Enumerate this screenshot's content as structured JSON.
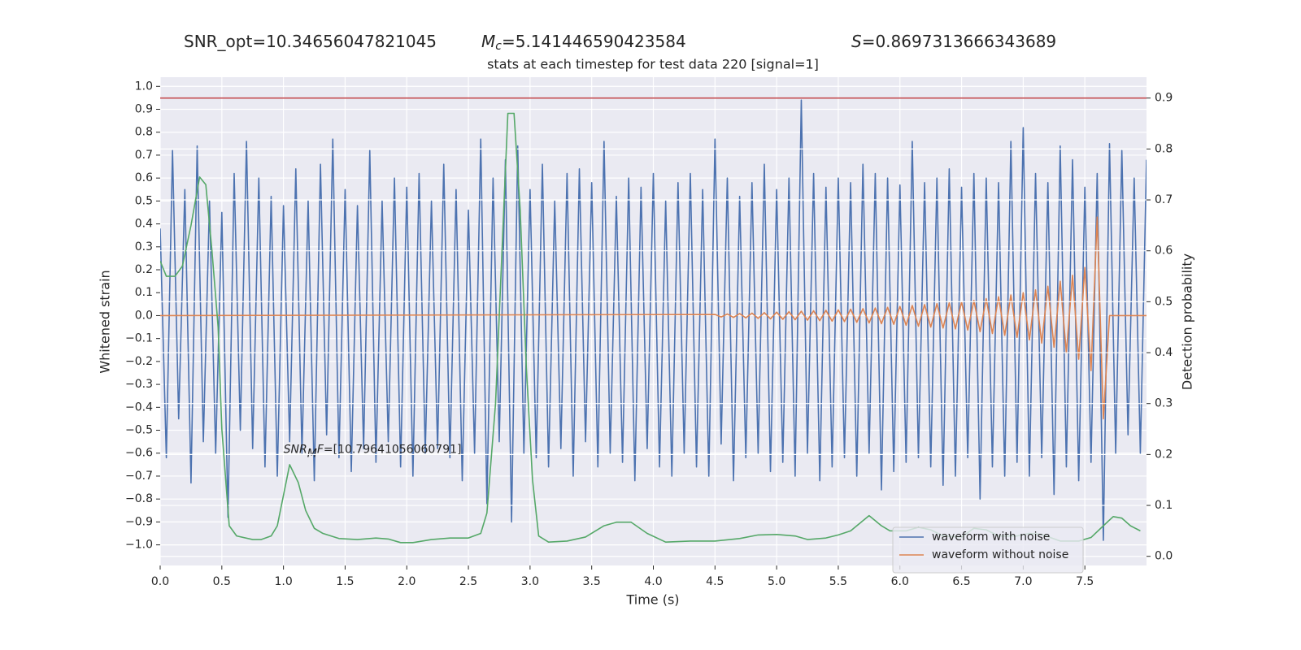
{
  "chart_data": {
    "type": "line",
    "title": "stats at each timestep for test data 220 [signal=1]",
    "header": [
      {
        "parts": [
          "SNR_opt=10.34656047821045"
        ]
      },
      {
        "parts": [
          "M",
          "c",
          "=5.141446590423584"
        ]
      },
      {
        "parts": [
          "S",
          "=0.8697313666343689"
        ]
      }
    ],
    "annotation": {
      "parts": [
        "SNR",
        "M",
        "F",
        "=[10.79641056060791]"
      ]
    },
    "xlabel": "Time (s)",
    "ylabel": "Whitened strain",
    "y2label": "Detection probability",
    "xlim": [
      0,
      8
    ],
    "ylim": [
      -1.09,
      1.04
    ],
    "y2lim": [
      -0.018,
      0.941
    ],
    "xticks": [
      {
        "value": 0,
        "label": "0.0"
      },
      0.5,
      {
        "value": 1,
        "label": "1.0"
      },
      1.5,
      {
        "value": 2,
        "label": "2.0"
      },
      2.5,
      {
        "value": 3,
        "label": "3.0"
      },
      3.5,
      {
        "value": 4,
        "label": "4.0"
      },
      4.5,
      {
        "value": 5,
        "label": "5.0"
      },
      5.5,
      {
        "value": 6,
        "label": "6.0"
      },
      6.5,
      {
        "value": 7,
        "label": "7.0"
      },
      7.5
    ],
    "yticks": [
      {
        "value": -1,
        "label": "−1.0"
      },
      {
        "value": -0.9,
        "label": "−0.9"
      },
      {
        "value": -0.8,
        "label": "−0.8"
      },
      {
        "value": -0.7,
        "label": "−0.7"
      },
      {
        "value": -0.6,
        "label": "−0.6"
      },
      {
        "value": -0.5,
        "label": "−0.5"
      },
      {
        "value": -0.4,
        "label": "−0.4"
      },
      {
        "value": -0.3,
        "label": "−0.3"
      },
      {
        "value": -0.2,
        "label": "−0.2"
      },
      {
        "value": -0.1,
        "label": "−0.1"
      },
      {
        "value": 0,
        "label": "0.0"
      },
      0.1,
      0.2,
      0.3,
      0.4,
      0.5,
      0.6,
      0.7,
      0.8,
      0.9,
      {
        "value": 1,
        "label": "1.0"
      }
    ],
    "y2ticks": [
      {
        "value": 0,
        "label": "0.0"
      },
      0.1,
      0.2,
      0.3,
      0.4,
      0.5,
      0.6,
      0.7,
      0.8,
      0.9
    ],
    "grid": true,
    "legend": "lower right",
    "hlines": [
      {
        "value": 0.9,
        "axis": "y2",
        "color": "#c44e52"
      }
    ],
    "series": [
      {
        "name": "waveform with noise",
        "color": "#4c72b0",
        "x": [
          0,
          0.05,
          0.1,
          0.15,
          0.2,
          0.25,
          0.3,
          0.35,
          0.4,
          0.45,
          0.5,
          0.55,
          0.6,
          0.65,
          0.7,
          0.75,
          0.8,
          0.85,
          0.9,
          0.95,
          1,
          1.05,
          1.1,
          1.15,
          1.2,
          1.25,
          1.3,
          1.35,
          1.4,
          1.45,
          1.5,
          1.55,
          1.6,
          1.65,
          1.7,
          1.75,
          1.8,
          1.85,
          1.9,
          1.95,
          2,
          2.05,
          2.1,
          2.15,
          2.2,
          2.25,
          2.3,
          2.35,
          2.4,
          2.45,
          2.5,
          2.55,
          2.6,
          2.65,
          2.7,
          2.75,
          2.8,
          2.85,
          2.9,
          2.95,
          3,
          3.05,
          3.1,
          3.15,
          3.2,
          3.25,
          3.3,
          3.35,
          3.4,
          3.45,
          3.5,
          3.55,
          3.6,
          3.65,
          3.7,
          3.75,
          3.8,
          3.85,
          3.9,
          3.95,
          4,
          4.05,
          4.1,
          4.15,
          4.2,
          4.25,
          4.3,
          4.35,
          4.4,
          4.45,
          4.5,
          4.55,
          4.6,
          4.65,
          4.7,
          4.75,
          4.8,
          4.85,
          4.9,
          4.95,
          5,
          5.05,
          5.1,
          5.15,
          5.2,
          5.25,
          5.3,
          5.35,
          5.4,
          5.45,
          5.5,
          5.55,
          5.6,
          5.65,
          5.7,
          5.75,
          5.8,
          5.85,
          5.9,
          5.95,
          6,
          6.05,
          6.1,
          6.15,
          6.2,
          6.25,
          6.3,
          6.35,
          6.4,
          6.45,
          6.5,
          6.55,
          6.6,
          6.65,
          6.7,
          6.75,
          6.8,
          6.85,
          6.9,
          6.95,
          7,
          7.05,
          7.1,
          7.15,
          7.2,
          7.25,
          7.3,
          7.35,
          7.4,
          7.45,
          7.5,
          7.55,
          7.6,
          7.65,
          7.7,
          7.75,
          7.8,
          7.85,
          7.9,
          7.95,
          8
        ],
        "values": [
          0.38,
          -0.62,
          0.72,
          -0.45,
          0.55,
          -0.73,
          0.74,
          -0.55,
          0.5,
          -0.6,
          0.45,
          -0.88,
          0.62,
          -0.5,
          0.76,
          -0.58,
          0.6,
          -0.66,
          0.52,
          -0.7,
          0.48,
          -0.55,
          0.64,
          -0.6,
          0.5,
          -0.72,
          0.66,
          -0.52,
          0.77,
          -0.62,
          0.55,
          -0.68,
          0.48,
          -0.58,
          0.72,
          -0.64,
          0.5,
          -0.55,
          0.6,
          -0.66,
          0.56,
          -0.7,
          0.62,
          -0.6,
          0.5,
          -0.58,
          0.66,
          -0.62,
          0.55,
          -0.72,
          0.46,
          -0.6,
          0.77,
          -0.82,
          0.6,
          -0.55,
          0.68,
          -0.9,
          0.74,
          -0.6,
          0.55,
          -0.62,
          0.66,
          -0.66,
          0.5,
          -0.58,
          0.62,
          -0.7,
          0.64,
          -0.55,
          0.58,
          -0.66,
          0.76,
          -0.6,
          0.52,
          -0.64,
          0.6,
          -0.72,
          0.56,
          -0.58,
          0.62,
          -0.66,
          0.5,
          -0.7,
          0.58,
          -0.6,
          0.62,
          -0.66,
          0.55,
          -0.7,
          0.77,
          -0.56,
          0.6,
          -0.72,
          0.52,
          -0.62,
          0.58,
          -0.6,
          0.66,
          -0.68,
          0.55,
          -0.64,
          0.6,
          -0.7,
          0.94,
          -0.6,
          0.62,
          -0.72,
          0.56,
          -0.66,
          0.6,
          -0.62,
          0.58,
          -0.7,
          0.66,
          -0.6,
          0.62,
          -0.76,
          0.6,
          -0.68,
          0.57,
          -0.64,
          0.76,
          -0.62,
          0.58,
          -0.66,
          0.6,
          -0.74,
          0.64,
          -0.7,
          0.56,
          -0.62,
          0.62,
          -0.8,
          0.6,
          -0.66,
          0.58,
          -0.7,
          0.76,
          -0.64,
          0.82,
          -0.7,
          0.62,
          -0.62,
          0.58,
          -0.78,
          0.74,
          -0.66,
          0.68,
          -0.72,
          0.56,
          -0.64,
          0.62,
          -0.98,
          0.75,
          -0.6,
          0.72,
          -0.52,
          0.6,
          -0.6,
          0.68
        ]
      },
      {
        "name": "waveform without noise",
        "color": "#dd8452",
        "x": [
          0,
          4.5,
          4.55,
          4.6,
          4.65,
          4.7,
          4.75,
          4.8,
          4.85,
          4.9,
          4.95,
          5,
          5.05,
          5.1,
          5.15,
          5.2,
          5.25,
          5.3,
          5.35,
          5.4,
          5.45,
          5.5,
          5.55,
          5.6,
          5.65,
          5.7,
          5.75,
          5.8,
          5.85,
          5.9,
          5.95,
          6,
          6.05,
          6.1,
          6.15,
          6.2,
          6.25,
          6.3,
          6.35,
          6.4,
          6.45,
          6.5,
          6.55,
          6.6,
          6.65,
          6.7,
          6.75,
          6.8,
          6.85,
          6.9,
          6.95,
          7,
          7.05,
          7.1,
          7.15,
          7.2,
          7.25,
          7.3,
          7.35,
          7.4,
          7.45,
          7.5,
          7.55,
          7.6,
          7.65,
          7.7,
          8
        ],
        "values": [
          0,
          0.005,
          -0.006,
          0.007,
          -0.008,
          0.009,
          -0.01,
          0.011,
          -0.012,
          0.013,
          -0.014,
          0.015,
          -0.016,
          0.017,
          -0.018,
          0.019,
          -0.02,
          0.021,
          -0.022,
          0.023,
          -0.024,
          0.025,
          -0.026,
          0.028,
          -0.029,
          0.03,
          -0.032,
          0.033,
          -0.035,
          0.036,
          -0.038,
          0.04,
          -0.042,
          0.044,
          -0.046,
          0.048,
          -0.05,
          0.052,
          -0.054,
          0.056,
          -0.058,
          0.06,
          -0.063,
          0.066,
          -0.07,
          0.074,
          -0.078,
          0.082,
          -0.086,
          0.09,
          -0.095,
          0.1,
          -0.106,
          0.112,
          -0.12,
          0.128,
          -0.138,
          0.15,
          -0.162,
          0.176,
          -0.19,
          0.21,
          -0.24,
          0.43,
          -0.45,
          0,
          0
        ]
      },
      {
        "color": "#55a868",
        "axis": "y2",
        "x": [
          0,
          0.05,
          0.12,
          0.18,
          0.25,
          0.32,
          0.37,
          0.42,
          0.47,
          0.5,
          0.56,
          0.62,
          0.75,
          0.82,
          0.9,
          0.95,
          1.05,
          1.12,
          1.18,
          1.25,
          1.32,
          1.45,
          1.6,
          1.75,
          1.85,
          1.95,
          2.05,
          2.2,
          2.35,
          2.5,
          2.6,
          2.65,
          2.72,
          2.79,
          2.82,
          2.87,
          2.92,
          2.97,
          3.02,
          3.07,
          3.15,
          3.3,
          3.45,
          3.6,
          3.7,
          3.82,
          3.95,
          4.1,
          4.3,
          4.5,
          4.7,
          4.85,
          5,
          5.15,
          5.25,
          5.4,
          5.5,
          5.6,
          5.7,
          5.75,
          5.85,
          5.92,
          6.05,
          6.15,
          6.25,
          6.35,
          6.5,
          6.6,
          6.7,
          6.8,
          6.95,
          7.05,
          7.15,
          7.3,
          7.45,
          7.55,
          7.65,
          7.73,
          7.8,
          7.87,
          7.95
        ],
        "values": [
          0.58,
          0.55,
          0.55,
          0.57,
          0.65,
          0.745,
          0.73,
          0.6,
          0.45,
          0.25,
          0.06,
          0.04,
          0.033,
          0.033,
          0.04,
          0.06,
          0.18,
          0.145,
          0.09,
          0.055,
          0.045,
          0.035,
          0.033,
          0.036,
          0.034,
          0.027,
          0.027,
          0.033,
          0.036,
          0.036,
          0.045,
          0.085,
          0.3,
          0.7,
          0.87,
          0.87,
          0.68,
          0.37,
          0.15,
          0.04,
          0.028,
          0.03,
          0.038,
          0.06,
          0.067,
          0.067,
          0.045,
          0.028,
          0.03,
          0.03,
          0.035,
          0.042,
          0.043,
          0.04,
          0.033,
          0.036,
          0.042,
          0.05,
          0.07,
          0.08,
          0.06,
          0.05,
          0.05,
          0.057,
          0.052,
          0.04,
          0.038,
          0.055,
          0.052,
          0.04,
          0.04,
          0.045,
          0.043,
          0.03,
          0.03,
          0.037,
          0.06,
          0.078,
          0.075,
          0.06,
          0.05
        ]
      }
    ]
  }
}
